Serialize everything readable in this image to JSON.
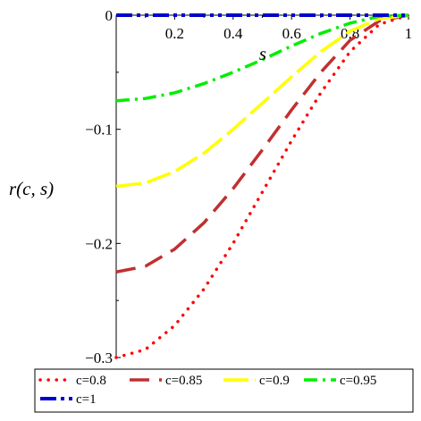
{
  "chart_data": {
    "type": "line",
    "title": "",
    "xlabel": "s",
    "ylabel": "r(c, s)",
    "xlim": [
      0,
      1
    ],
    "ylim": [
      -0.3,
      0
    ],
    "x_ticks": [
      {
        "value": 0.2,
        "label": "0.2"
      },
      {
        "value": 0.4,
        "label": "0.4"
      },
      {
        "value": 0.6,
        "label": "0.6"
      },
      {
        "value": 0.8,
        "label": "0.8"
      },
      {
        "value": 1.0,
        "label": "1"
      }
    ],
    "y_ticks": [
      {
        "value": 0,
        "label": "0"
      },
      {
        "value": -0.1,
        "label": "−0.1"
      },
      {
        "value": -0.2,
        "label": "−0.2"
      },
      {
        "value": -0.3,
        "label": "−0.3"
      }
    ],
    "grid": false,
    "legend_position": "bottom",
    "series": [
      {
        "name": "c=0.8",
        "color": "#ff0000",
        "dash": "dot",
        "x": [
          0,
          0.1,
          0.2,
          0.3,
          0.4,
          0.5,
          0.6,
          0.7,
          0.8,
          0.9,
          1.0
        ],
        "y": [
          -0.3,
          -0.293,
          -0.272,
          -0.24,
          -0.2,
          -0.155,
          -0.11,
          -0.068,
          -0.032,
          -0.008,
          0
        ]
      },
      {
        "name": "c=0.85",
        "color": "#c03030",
        "dash": "longdash",
        "x": [
          0,
          0.1,
          0.2,
          0.3,
          0.4,
          0.5,
          0.6,
          0.7,
          0.8,
          0.9,
          1.0
        ],
        "y": [
          -0.225,
          -0.22,
          -0.205,
          -0.182,
          -0.152,
          -0.118,
          -0.083,
          -0.05,
          -0.022,
          -0.005,
          0
        ]
      },
      {
        "name": "c=0.9",
        "color": "#ffff00",
        "dash": "dash",
        "x": [
          0,
          0.1,
          0.2,
          0.3,
          0.4,
          0.5,
          0.6,
          0.7,
          0.8,
          0.9,
          1.0
        ],
        "y": [
          -0.15,
          -0.147,
          -0.137,
          -0.121,
          -0.1,
          -0.077,
          -0.054,
          -0.032,
          -0.014,
          -0.003,
          0
        ]
      },
      {
        "name": "c=0.95",
        "color": "#00ee00",
        "dash": "dashdot",
        "x": [
          0,
          0.1,
          0.2,
          0.3,
          0.4,
          0.5,
          0.6,
          0.7,
          0.8,
          0.9,
          1.0
        ],
        "y": [
          -0.075,
          -0.073,
          -0.068,
          -0.06,
          -0.05,
          -0.039,
          -0.027,
          -0.016,
          -0.007,
          -0.001,
          0
        ]
      },
      {
        "name": "c=1",
        "color": "#0000cc",
        "dash": "dashdotdot",
        "x": [
          0,
          0.2,
          0.4,
          0.6,
          0.8,
          1.0
        ],
        "y": [
          0,
          0,
          0,
          0,
          0,
          0
        ]
      }
    ]
  }
}
